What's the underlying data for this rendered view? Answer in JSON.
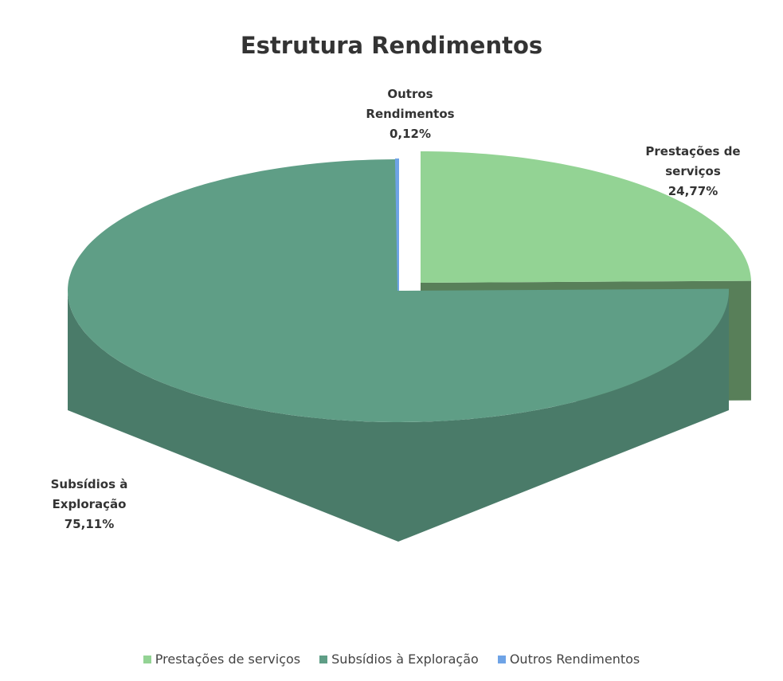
{
  "chart_data": {
    "type": "pie3d",
    "title": "Estrutura Rendimentos",
    "categories": [
      "Prestações de serviços",
      "Subsídios à Exploração",
      "Outros Rendimentos"
    ],
    "values": [
      24.77,
      75.11,
      0.12
    ],
    "value_labels": [
      "24,77%",
      "75,11%",
      "0,12%"
    ],
    "colors": [
      "#93d394",
      "#5f9e86",
      "#6ea3e6"
    ],
    "legend": "bottom"
  }
}
